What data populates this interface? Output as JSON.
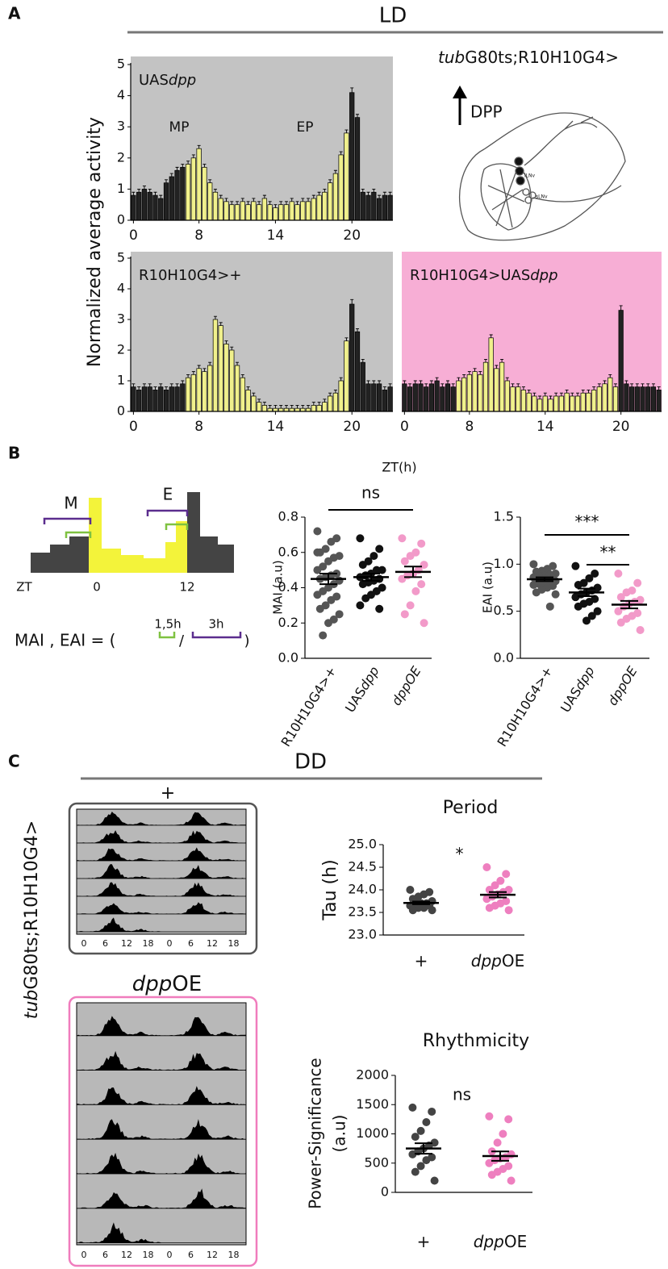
{
  "figure": {
    "panels": [
      "A",
      "B",
      "C"
    ],
    "ld": "LD",
    "dd": "DD",
    "genotype": [
      {
        "text": "tub",
        "italic": true
      },
      {
        "text": "G80ts;R10H10G4>"
      }
    ],
    "dpp_arrow": "DPP",
    "neuron_labels": [
      "lLNv",
      "sLNv"
    ],
    "zt_label": "ZT(h)",
    "schematic": {
      "m": "M",
      "e": "E",
      "zt": "ZT",
      "zero": "0",
      "twelve": "12",
      "formula": "MAI , EAI = (",
      "short": "1,5h",
      "slash": "/",
      "long": "3h",
      "close": ")"
    },
    "actogram": {
      "top_title": "+",
      "bottom_title": [
        {
          "text": "dpp",
          "italic": true
        },
        {
          "text": "OE"
        }
      ],
      "ticks": [
        "0",
        "6",
        "12",
        "18",
        "0",
        "6",
        "12",
        "18"
      ],
      "side_label": [
        {
          "text": "tub",
          "italic": true
        },
        {
          "text": "G80ts;R10H10G4>"
        }
      ]
    }
  },
  "chart_data": [
    {
      "type": "bar",
      "title": [
        {
          "text": "UAS"
        },
        {
          "text": "dpp",
          "italic": true
        }
      ],
      "ylabel": "Normalized average activity",
      "annotations": [
        {
          "text": "MP"
        },
        {
          "text": "EP"
        }
      ],
      "background": "#c3c3c3",
      "categories": [
        "0",
        null,
        null,
        null,
        null,
        null,
        null,
        null,
        null,
        null,
        null,
        null,
        "8",
        null,
        null,
        null,
        null,
        null,
        null,
        null,
        null,
        null,
        null,
        null,
        null,
        null,
        "14",
        null,
        null,
        null,
        null,
        null,
        null,
        null,
        null,
        null,
        null,
        null,
        null,
        null,
        "20",
        null,
        null,
        null,
        null,
        null,
        null,
        null
      ],
      "values": [
        0.8,
        0.9,
        1.0,
        0.9,
        0.8,
        0.7,
        1.2,
        1.4,
        1.6,
        1.7,
        1.8,
        2.0,
        2.3,
        1.7,
        1.2,
        0.9,
        0.7,
        0.6,
        0.5,
        0.5,
        0.6,
        0.5,
        0.6,
        0.5,
        0.7,
        0.5,
        0.4,
        0.5,
        0.5,
        0.6,
        0.5,
        0.6,
        0.6,
        0.7,
        0.8,
        0.9,
        1.2,
        1.5,
        2.1,
        2.8,
        4.1,
        3.3,
        0.9,
        0.8,
        0.9,
        0.7,
        0.8,
        0.8
      ],
      "errors": [
        0.1,
        0.1,
        0.1,
        0.1,
        0.1,
        0.1,
        0.1,
        0.1,
        0.1,
        0.1,
        0.1,
        0.1,
        0.1,
        0.1,
        0.1,
        0.1,
        0.1,
        0.1,
        0.1,
        0.1,
        0.1,
        0.1,
        0.1,
        0.1,
        0.1,
        0.1,
        0.1,
        0.1,
        0.1,
        0.1,
        0.1,
        0.1,
        0.1,
        0.1,
        0.1,
        0.1,
        0.1,
        0.1,
        0.1,
        0.1,
        0.15,
        0.1,
        0.1,
        0.1,
        0.1,
        0.1,
        0.1,
        0.1
      ],
      "colors": [
        "#222",
        "#222",
        "#222",
        "#222",
        "#222",
        "#222",
        "#222",
        "#222",
        "#222",
        "#222",
        "#f0f08c",
        "#f0f08c",
        "#f0f08c",
        "#f0f08c",
        "#f0f08c",
        "#f0f08c",
        "#f0f08c",
        "#f0f08c",
        "#f0f08c",
        "#f0f08c",
        "#f0f08c",
        "#f0f08c",
        "#f0f08c",
        "#f0f08c",
        "#f0f08c",
        "#f0f08c",
        "#f0f08c",
        "#f0f08c",
        "#f0f08c",
        "#f0f08c",
        "#f0f08c",
        "#f0f08c",
        "#f0f08c",
        "#f0f08c",
        "#f0f08c",
        "#f0f08c",
        "#f0f08c",
        "#f0f08c",
        "#f0f08c",
        "#f0f08c",
        "#222",
        "#222",
        "#222",
        "#222",
        "#222",
        "#222",
        "#222",
        "#222"
      ],
      "ylim": [
        0,
        5
      ],
      "yticks": [
        0,
        1,
        2,
        3,
        4,
        5
      ]
    },
    {
      "type": "bar",
      "title": [
        {
          "text": "R10H10G4>+"
        }
      ],
      "background": "#c3c3c3",
      "categories": [
        "0",
        null,
        null,
        null,
        null,
        null,
        null,
        null,
        null,
        null,
        null,
        null,
        "8",
        null,
        null,
        null,
        null,
        null,
        null,
        null,
        null,
        null,
        null,
        null,
        null,
        null,
        "14",
        null,
        null,
        null,
        null,
        null,
        null,
        null,
        null,
        null,
        null,
        null,
        null,
        null,
        "20",
        null,
        null,
        null,
        null,
        null,
        null,
        null
      ],
      "values": [
        0.8,
        0.7,
        0.8,
        0.8,
        0.7,
        0.8,
        0.7,
        0.8,
        0.8,
        0.9,
        1.1,
        1.2,
        1.4,
        1.3,
        1.5,
        3.0,
        2.8,
        2.2,
        2.0,
        1.5,
        1.1,
        0.7,
        0.5,
        0.3,
        0.2,
        0.1,
        0.1,
        0.1,
        0.1,
        0.1,
        0.1,
        0.1,
        0.1,
        0.2,
        0.2,
        0.3,
        0.5,
        0.6,
        1.0,
        2.3,
        3.5,
        2.6,
        1.6,
        0.9,
        0.9,
        0.9,
        0.7,
        0.8
      ],
      "errors": [
        0.1,
        0.1,
        0.1,
        0.1,
        0.1,
        0.1,
        0.1,
        0.1,
        0.1,
        0.1,
        0.1,
        0.1,
        0.1,
        0.1,
        0.1,
        0.1,
        0.1,
        0.1,
        0.1,
        0.1,
        0.1,
        0.1,
        0.1,
        0.1,
        0.1,
        0.1,
        0.1,
        0.1,
        0.1,
        0.1,
        0.1,
        0.1,
        0.1,
        0.1,
        0.1,
        0.1,
        0.1,
        0.1,
        0.1,
        0.1,
        0.15,
        0.1,
        0.1,
        0.1,
        0.1,
        0.1,
        0.1,
        0.1
      ],
      "colors": [
        "#222",
        "#222",
        "#222",
        "#222",
        "#222",
        "#222",
        "#222",
        "#222",
        "#222",
        "#222",
        "#f0f08c",
        "#f0f08c",
        "#f0f08c",
        "#f0f08c",
        "#f0f08c",
        "#f0f08c",
        "#f0f08c",
        "#f0f08c",
        "#f0f08c",
        "#f0f08c",
        "#f0f08c",
        "#f0f08c",
        "#f0f08c",
        "#f0f08c",
        "#f0f08c",
        "#f0f08c",
        "#f0f08c",
        "#f0f08c",
        "#f0f08c",
        "#f0f08c",
        "#f0f08c",
        "#f0f08c",
        "#f0f08c",
        "#f0f08c",
        "#f0f08c",
        "#f0f08c",
        "#f0f08c",
        "#f0f08c",
        "#f0f08c",
        "#f0f08c",
        "#222",
        "#222",
        "#222",
        "#222",
        "#222",
        "#222",
        "#222",
        "#222"
      ],
      "ylim": [
        0,
        5
      ],
      "yticks": [
        0,
        1,
        2,
        3,
        4,
        5
      ]
    },
    {
      "type": "bar",
      "title": [
        {
          "text": "R10H10G4>UAS"
        },
        {
          "text": "dpp",
          "italic": true
        }
      ],
      "background": "#f7aed5",
      "categories": [
        "0",
        null,
        null,
        null,
        null,
        null,
        null,
        null,
        null,
        null,
        null,
        null,
        "8",
        null,
        null,
        null,
        null,
        null,
        null,
        null,
        null,
        null,
        null,
        null,
        null,
        null,
        "14",
        null,
        null,
        null,
        null,
        null,
        null,
        null,
        null,
        null,
        null,
        null,
        null,
        null,
        "20",
        null,
        null,
        null,
        null,
        null,
        null,
        null
      ],
      "values": [
        0.9,
        0.8,
        0.9,
        0.9,
        0.8,
        0.9,
        1.0,
        0.8,
        0.9,
        0.8,
        1.0,
        1.1,
        1.2,
        1.3,
        1.2,
        1.6,
        2.4,
        1.4,
        1.6,
        1.0,
        0.8,
        0.8,
        0.7,
        0.6,
        0.5,
        0.4,
        0.5,
        0.4,
        0.5,
        0.5,
        0.6,
        0.5,
        0.5,
        0.6,
        0.6,
        0.7,
        0.8,
        0.9,
        1.1,
        0.8,
        3.3,
        0.9,
        0.8,
        0.8,
        0.8,
        0.8,
        0.8,
        0.7
      ],
      "errors": [
        0.1,
        0.1,
        0.1,
        0.1,
        0.1,
        0.1,
        0.1,
        0.1,
        0.1,
        0.1,
        0.1,
        0.1,
        0.1,
        0.1,
        0.1,
        0.1,
        0.1,
        0.1,
        0.1,
        0.1,
        0.1,
        0.1,
        0.1,
        0.1,
        0.1,
        0.1,
        0.1,
        0.1,
        0.1,
        0.1,
        0.1,
        0.1,
        0.1,
        0.1,
        0.1,
        0.1,
        0.1,
        0.1,
        0.1,
        0.1,
        0.15,
        0.1,
        0.1,
        0.1,
        0.1,
        0.1,
        0.1,
        0.1
      ],
      "colors": [
        "#222",
        "#222",
        "#222",
        "#222",
        "#222",
        "#222",
        "#222",
        "#222",
        "#222",
        "#222",
        "#f0f08c",
        "#f0f08c",
        "#f0f08c",
        "#f0f08c",
        "#f0f08c",
        "#f0f08c",
        "#f0f08c",
        "#f0f08c",
        "#f0f08c",
        "#f0f08c",
        "#f0f08c",
        "#f0f08c",
        "#f0f08c",
        "#f0f08c",
        "#f0f08c",
        "#f0f08c",
        "#f0f08c",
        "#f0f08c",
        "#f0f08c",
        "#f0f08c",
        "#f0f08c",
        "#f0f08c",
        "#f0f08c",
        "#f0f08c",
        "#f0f08c",
        "#f0f08c",
        "#f0f08c",
        "#f0f08c",
        "#f0f08c",
        "#f0f08c",
        "#222",
        "#222",
        "#222",
        "#222",
        "#222",
        "#222",
        "#222",
        "#222"
      ],
      "ylim": [
        0,
        5
      ]
    },
    {
      "type": "dot",
      "ylabel": "MAI (a.u)",
      "categories": [
        [
          {
            "text": "R10H10G4>+"
          }
        ],
        [
          {
            "text": "UAS"
          },
          {
            "text": "dpp",
            "italic": true
          }
        ],
        [
          {
            "text": "dppOE",
            "italic": true
          }
        ]
      ],
      "groups": [
        {
          "color": "#555555",
          "values": [
            0.72,
            0.68,
            0.66,
            0.62,
            0.6,
            0.58,
            0.57,
            0.55,
            0.52,
            0.5,
            0.48,
            0.47,
            0.46,
            0.45,
            0.44,
            0.42,
            0.4,
            0.38,
            0.36,
            0.35,
            0.33,
            0.3,
            0.28,
            0.25,
            0.22,
            0.2,
            0.13,
            0.6
          ],
          "mean": 0.45,
          "sem": 0.03
        },
        {
          "color": "#111111",
          "values": [
            0.68,
            0.62,
            0.58,
            0.55,
            0.53,
            0.5,
            0.5,
            0.48,
            0.47,
            0.46,
            0.45,
            0.44,
            0.43,
            0.42,
            0.4,
            0.38,
            0.36,
            0.34,
            0.3,
            0.28
          ],
          "mean": 0.46,
          "sem": 0.02
        },
        {
          "color": "#f29ac9",
          "values": [
            0.68,
            0.65,
            0.6,
            0.58,
            0.55,
            0.53,
            0.5,
            0.48,
            0.47,
            0.45,
            0.42,
            0.38,
            0.3,
            0.25,
            0.2
          ],
          "mean": 0.49,
          "sem": 0.03
        }
      ],
      "significance": [
        {
          "text": "ns",
          "between": [
            0,
            2
          ]
        }
      ],
      "ylim": [
        0,
        0.8
      ],
      "yticks": [
        {
          "value": 0,
          "label": "0.0"
        },
        0.2,
        0.4,
        0.6,
        0.8
      ]
    },
    {
      "type": "dot",
      "ylabel": "EAI (a.u)",
      "categories": [
        [
          {
            "text": "R10H10G4>+"
          }
        ],
        [
          {
            "text": "UAS"
          },
          {
            "text": "dpp",
            "italic": true
          }
        ],
        [
          {
            "text": "dppOE",
            "italic": true
          }
        ]
      ],
      "groups": [
        {
          "color": "#555555",
          "values": [
            1.0,
            0.98,
            0.95,
            0.93,
            0.92,
            0.9,
            0.89,
            0.88,
            0.87,
            0.86,
            0.85,
            0.85,
            0.84,
            0.83,
            0.82,
            0.81,
            0.8,
            0.79,
            0.78,
            0.77,
            0.75,
            0.73,
            0.7,
            0.68,
            0.55
          ],
          "mean": 0.84,
          "sem": 0.02
        },
        {
          "color": "#111111",
          "values": [
            0.98,
            0.9,
            0.85,
            0.8,
            0.78,
            0.75,
            0.72,
            0.7,
            0.68,
            0.65,
            0.63,
            0.6,
            0.58,
            0.55,
            0.5,
            0.45,
            0.4
          ],
          "mean": 0.7,
          "sem": 0.04
        },
        {
          "color": "#f29ac9",
          "values": [
            0.9,
            0.8,
            0.72,
            0.7,
            0.65,
            0.62,
            0.6,
            0.58,
            0.55,
            0.5,
            0.48,
            0.45,
            0.42,
            0.38,
            0.3
          ],
          "mean": 0.57,
          "sem": 0.04
        }
      ],
      "significance": [
        {
          "text": "***",
          "between": [
            0,
            2
          ]
        },
        {
          "text": "**",
          "between": [
            1,
            2
          ]
        }
      ],
      "ylim": [
        0,
        1.5
      ],
      "yticks": [
        {
          "value": 0,
          "label": "0.0"
        },
        0.5,
        {
          "value": 1,
          "label": "1.0"
        },
        1.5
      ]
    },
    {
      "type": "dot",
      "title": "Period",
      "ylabel": "Tau (h)",
      "categories": [
        [
          {
            "text": "+"
          }
        ],
        [
          {
            "text": "dpp",
            "italic": true
          },
          {
            "text": "OE"
          }
        ]
      ],
      "groups": [
        {
          "color": "#444444",
          "values": [
            24.0,
            23.95,
            23.9,
            23.85,
            23.8,
            23.75,
            23.7,
            23.7,
            23.7,
            23.65,
            23.65,
            23.6,
            23.6,
            23.55,
            23.55
          ],
          "mean": 23.71,
          "sem": 0.03
        },
        {
          "color": "#ee7fbf",
          "values": [
            24.5,
            24.35,
            24.2,
            24.1,
            24.0,
            24.0,
            23.95,
            23.9,
            23.85,
            23.8,
            23.75,
            23.7,
            23.65,
            23.6,
            23.55
          ],
          "mean": 23.89,
          "sem": 0.06
        }
      ],
      "significance": [
        {
          "text": "*"
        }
      ],
      "ylim": [
        23,
        25
      ],
      "yticks": [
        {
          "value": 23,
          "label": "23.0"
        },
        23.5,
        {
          "value": 24,
          "label": "24.0"
        },
        24.5,
        {
          "value": 25,
          "label": "25.0"
        }
      ]
    },
    {
      "type": "dot",
      "title": "Rhythmicity",
      "ylabel": [
        "Power-Significance",
        "(a.u)"
      ],
      "categories": [
        [
          {
            "text": "+"
          }
        ],
        [
          {
            "text": "dpp",
            "italic": true
          },
          {
            "text": "OE"
          }
        ]
      ],
      "groups": [
        {
          "color": "#444444",
          "values": [
            1450,
            1380,
            1200,
            1050,
            950,
            850,
            800,
            750,
            700,
            650,
            600,
            550,
            450,
            350,
            200
          ],
          "mean": 750,
          "sem": 90
        },
        {
          "color": "#ee7fbf",
          "values": [
            1300,
            1250,
            1000,
            850,
            700,
            650,
            600,
            580,
            550,
            500,
            450,
            400,
            350,
            300,
            200
          ],
          "mean": 620,
          "sem": 80
        }
      ],
      "significance": [
        {
          "text": "ns"
        }
      ],
      "ylim": [
        0,
        2000
      ],
      "yticks": [
        0,
        500,
        1000,
        1500,
        2000
      ]
    }
  ]
}
